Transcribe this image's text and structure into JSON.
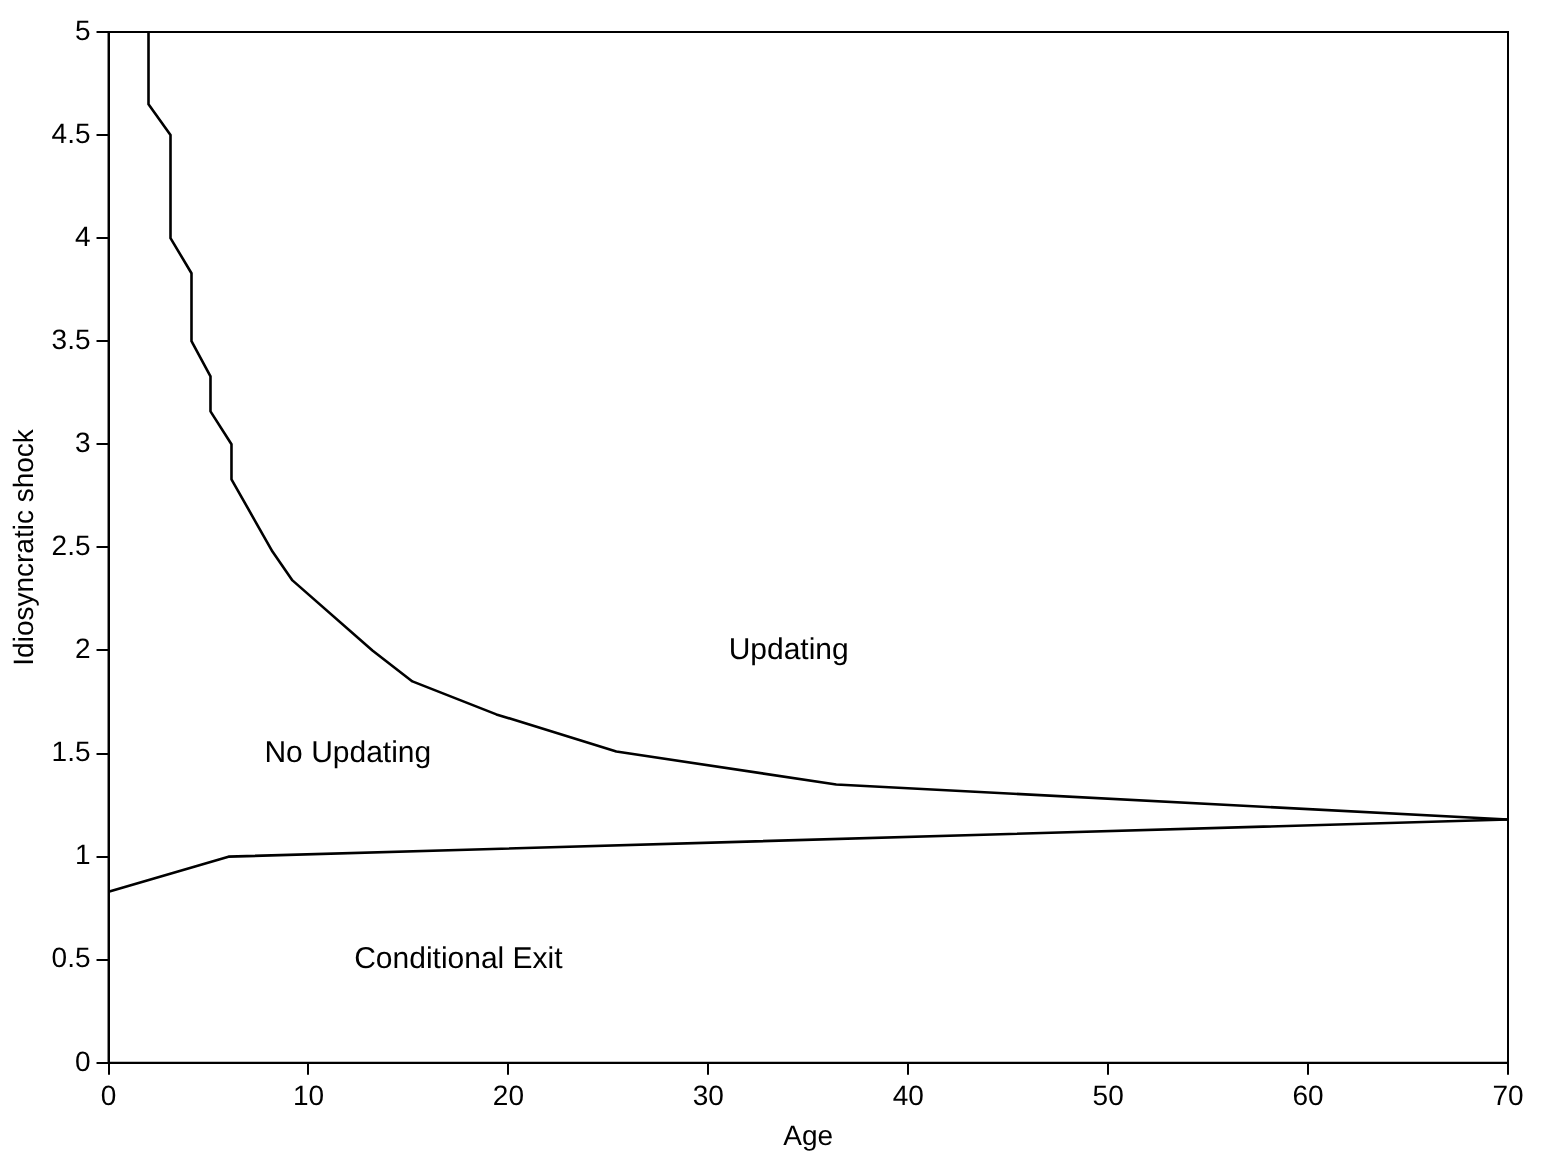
{
  "chart_data": {
    "type": "line",
    "xlabel": "Age",
    "ylabel": "Idiosyncratic shock",
    "series": [
      {
        "color": "#000000",
        "x": [
          2,
          2,
          3.1,
          3.1,
          4.15,
          4.15,
          5.1,
          5.1,
          6.15,
          6.15,
          8.2,
          9.2,
          13.2,
          15.2,
          19.4,
          25.4,
          36.4,
          70
        ],
        "values": [
          5,
          4.65,
          4.5,
          4.0,
          3.83,
          3.5,
          3.33,
          3.16,
          3.0,
          2.83,
          2.48,
          2.34,
          2.0,
          1.85,
          1.69,
          1.51,
          1.35,
          1.18
        ]
      },
      {
        "color": "#000000",
        "x": [
          0,
          6,
          70
        ],
        "values": [
          0.83,
          1.0,
          1.18
        ]
      }
    ],
    "annotations": [
      "Updating",
      "No Updating",
      "Conditional Exit"
    ],
    "xlim": [
      0,
      70
    ],
    "xticks": [
      0,
      10,
      20,
      30,
      40,
      50,
      60,
      70
    ],
    "ylim": [
      0,
      5
    ],
    "yticks": [
      0,
      0.5,
      1,
      1.5,
      2,
      2.5,
      3,
      3.5,
      4,
      4.5,
      5
    ],
    "grid": false,
    "legend": false,
    "marker": "none",
    "line_style": "solid"
  }
}
